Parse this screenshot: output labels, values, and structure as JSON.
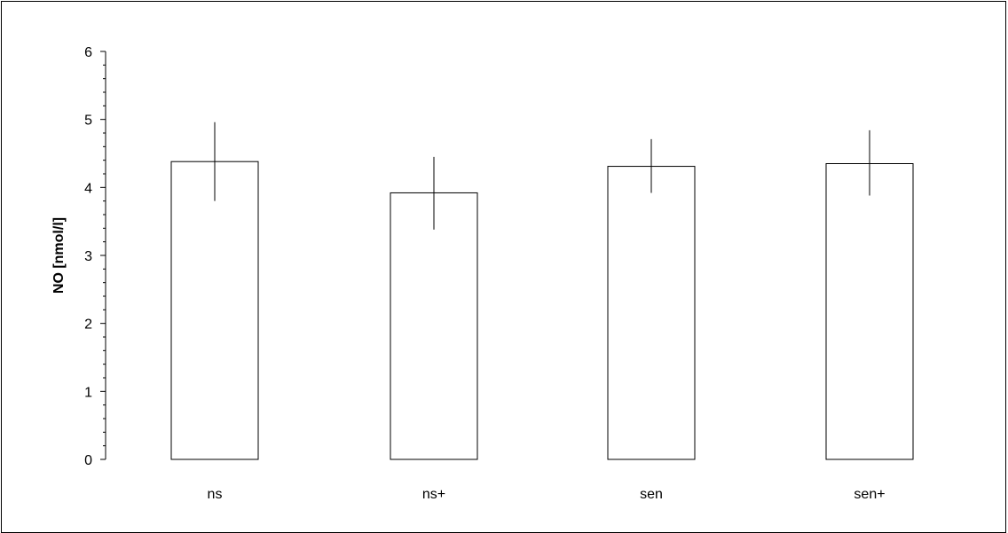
{
  "chart_data": {
    "type": "bar",
    "categories": [
      "ns",
      "ns+",
      "sen",
      "sen+"
    ],
    "values": [
      4.38,
      3.92,
      4.31,
      4.35
    ],
    "error_low": [
      3.8,
      3.38,
      3.92,
      3.88
    ],
    "error_high": [
      4.96,
      4.45,
      4.71,
      4.84
    ],
    "title": "",
    "xlabel": "",
    "ylabel": "NO [nmol/l]",
    "ylim": [
      0,
      6
    ],
    "yticks": [
      "0",
      "1",
      "2",
      "3",
      "4",
      "5",
      "6"
    ],
    "minor_ticks_per_major": 5,
    "grid": false,
    "legend": "none",
    "bar_fill": "#ffffff",
    "bar_stroke": "#000000"
  }
}
